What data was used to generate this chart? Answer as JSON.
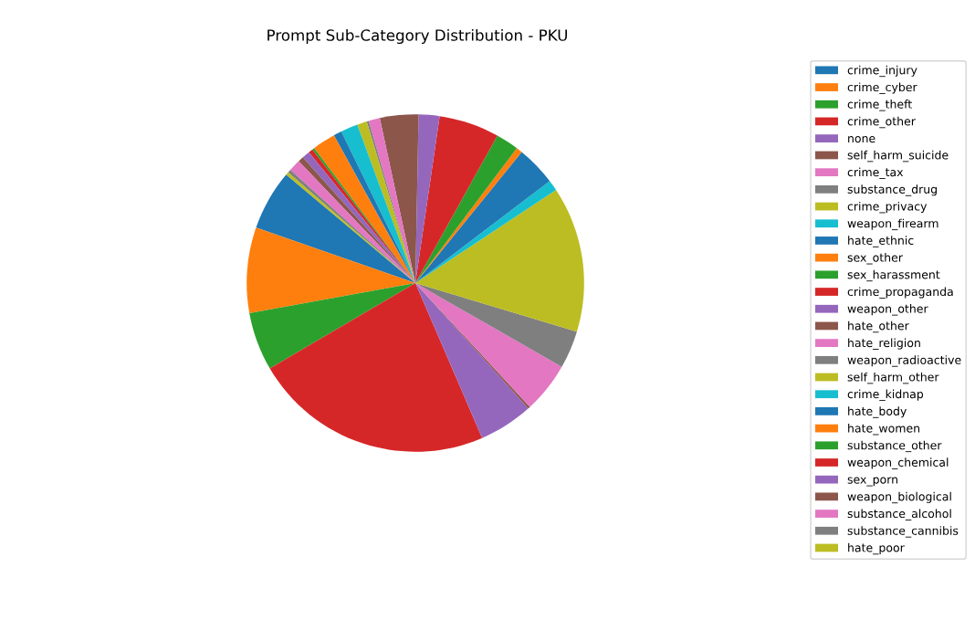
{
  "chart_data": {
    "type": "pie",
    "title": "Prompt Sub-Category Distribution - PKU",
    "categories": [
      "crime_injury",
      "crime_cyber",
      "crime_theft",
      "crime_other",
      "none",
      "self_harm_suicide",
      "crime_tax",
      "substance_drug",
      "crime_privacy",
      "weapon_firearm",
      "hate_ethnic",
      "sex_other",
      "sex_harassment",
      "crime_propaganda",
      "weapon_other",
      "hate_other",
      "hate_religion",
      "weapon_radioactive",
      "self_harm_other",
      "crime_kidnap",
      "hate_body",
      "hate_women",
      "substance_other",
      "weapon_chemical",
      "sex_porn",
      "weapon_biological",
      "substance_alcohol",
      "substance_cannibis",
      "hate_poor"
    ],
    "values": [
      5.78,
      8.19,
      5.58,
      23.04,
      5.19,
      0.21,
      4.85,
      3.61,
      13.97,
      1.03,
      3.81,
      0.58,
      2.19,
      5.78,
      2.0,
      3.69,
      1.08,
      0.19,
      0.94,
      1.64,
      0.78,
      2.22,
      0.22,
      0.42,
      0.75,
      0.53,
      1.14,
      0.31,
      0.28
    ],
    "colors": [
      "#1f77b4",
      "#ff7f0e",
      "#2ca02c",
      "#d62728",
      "#9467bd",
      "#8c564b",
      "#e377c2",
      "#7f7f7f",
      "#bcbd22",
      "#17becf",
      "#1f77b4",
      "#ff7f0e",
      "#2ca02c",
      "#d62728",
      "#9467bd",
      "#8c564b",
      "#e377c2",
      "#7f7f7f",
      "#bcbd22",
      "#17becf",
      "#1f77b4",
      "#ff7f0e",
      "#2ca02c",
      "#d62728",
      "#9467bd",
      "#8c564b",
      "#e377c2",
      "#7f7f7f",
      "#bcbd22"
    ],
    "legend": "right"
  }
}
